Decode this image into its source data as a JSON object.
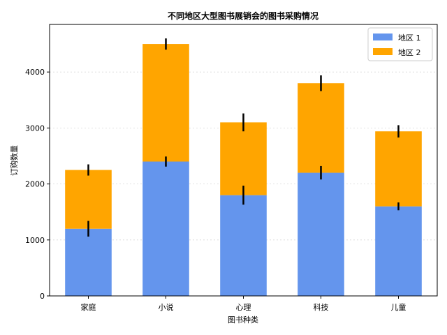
{
  "chart_data": {
    "type": "bar",
    "stacked": true,
    "title": "不同地区大型图书展销会的图书采购情况",
    "xlabel": "图书种类",
    "ylabel": "订购数量",
    "categories": [
      "家庭",
      "小说",
      "心理",
      "科技",
      "儿童"
    ],
    "series": [
      {
        "name": "地区 1",
        "values": [
          1200,
          2400,
          1800,
          2200,
          1600
        ],
        "errors": [
          140,
          90,
          170,
          120,
          70
        ],
        "color": "#6495ED"
      },
      {
        "name": "地区 2",
        "values": [
          1050,
          2100,
          1300,
          1600,
          1340
        ],
        "errors": [
          100,
          100,
          160,
          140,
          110
        ],
        "color": "#FFA500"
      }
    ],
    "ylim": [
      0,
      4850
    ],
    "yticks": [
      0,
      1000,
      2000,
      3000,
      4000
    ],
    "grid": true,
    "legend": "top-right",
    "error_color": "#000000"
  }
}
